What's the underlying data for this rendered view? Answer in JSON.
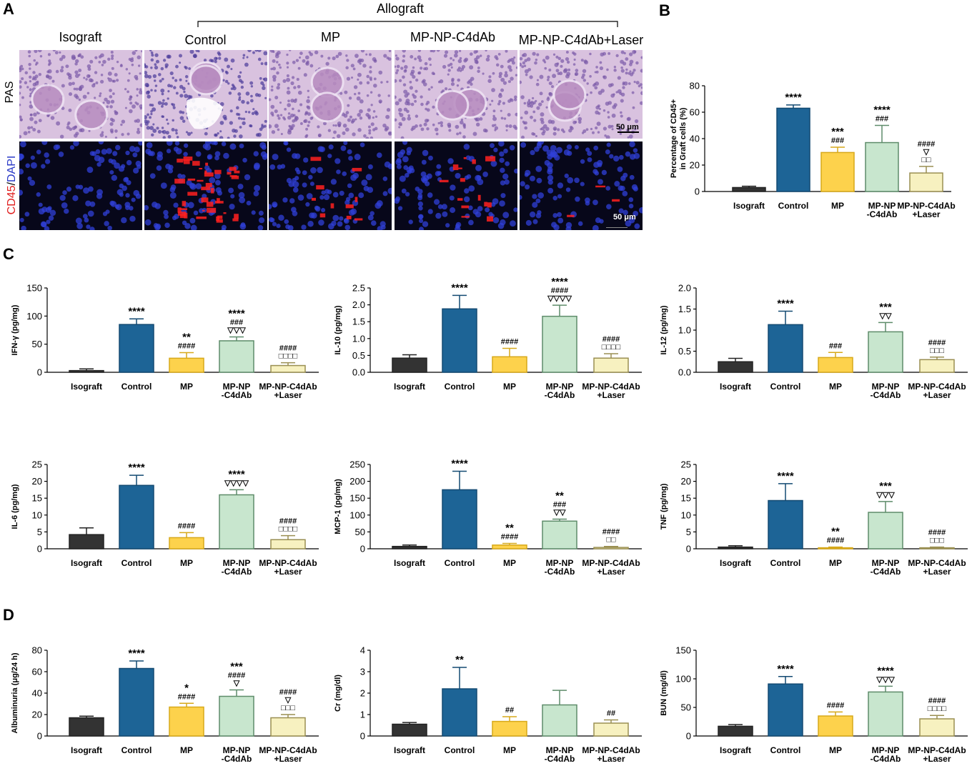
{
  "panel_letters": [
    "A",
    "B",
    "C",
    "D"
  ],
  "allograft_label": "Allograft",
  "micro_columns": [
    "Isograft",
    "Control",
    "MP",
    "MP-NP-C4dAb",
    "MP-NP-C4dAb+Laser"
  ],
  "micro_row_labels": {
    "pas": "PAS",
    "cd45": "CD45",
    "slash": "/",
    "dapi": "DAPI"
  },
  "scale_bars": [
    "50 μm",
    "50 μm"
  ],
  "colors": {
    "Isograft": "#333333",
    "Control": "#1d6496",
    "MP": "#fdd24c",
    "MP-NP-C4dAb": "#c8e6ce",
    "MP-NP-C4dAb+Laser": "#f7f1c0",
    "cd45_stain": "#ff2020",
    "dapi_stain": "#3040d8"
  },
  "chart_data": [
    {
      "id": "B",
      "type": "bar",
      "categories": [
        [
          "Isograft"
        ],
        [
          "Control"
        ],
        [
          "MP"
        ],
        [
          "MP-NP",
          "-C4dAb"
        ],
        [
          "MP-NP-C4dAb",
          "+Laser"
        ]
      ],
      "values": [
        3,
        63,
        29.5,
        37,
        14
      ],
      "errors": [
        1,
        2.5,
        4,
        13,
        5
      ],
      "ylabel": [
        "Percentage of CD45+",
        "in Graft cells (%)"
      ],
      "ylim": [
        0,
        80
      ],
      "yticks": [
        0,
        20,
        40,
        60,
        80
      ],
      "annotations": [
        [],
        [
          "****"
        ],
        [
          "***",
          "###"
        ],
        [
          "****",
          "###"
        ],
        [
          "####",
          "▽",
          "□□"
        ]
      ]
    },
    {
      "id": "IFN",
      "type": "bar",
      "categories": [
        [
          "Isograft"
        ],
        [
          "Control"
        ],
        [
          "MP"
        ],
        [
          "MP-NP",
          "-C4dAb"
        ],
        [
          "MP-NP-C4dAb",
          "+Laser"
        ]
      ],
      "values": [
        3,
        85,
        25,
        56,
        12
      ],
      "errors": [
        3,
        10,
        10,
        7,
        5
      ],
      "ylabel": [
        "IFN-γ (pg/mg)"
      ],
      "ylim": [
        0,
        150
      ],
      "yticks": [
        0,
        50,
        100,
        150
      ],
      "annotations": [
        [],
        [
          "****"
        ],
        [
          "**",
          "####"
        ],
        [
          "****",
          "###",
          "▽▽▽"
        ],
        [
          "####",
          "□□□□"
        ]
      ]
    },
    {
      "id": "IL10",
      "type": "bar",
      "categories": [
        [
          "Isograft"
        ],
        [
          "Control"
        ],
        [
          "MP"
        ],
        [
          "MP-NP",
          "-C4dAb"
        ],
        [
          "MP-NP-C4dAb",
          "+Laser"
        ]
      ],
      "values": [
        0.42,
        1.88,
        0.46,
        1.66,
        0.42
      ],
      "errors": [
        0.1,
        0.4,
        0.25,
        0.33,
        0.13
      ],
      "ylabel": [
        "IL-10 (pg/mg)"
      ],
      "ylim": [
        0,
        2.5
      ],
      "yticks": [
        0.0,
        0.5,
        1.0,
        1.5,
        2.0,
        2.5
      ],
      "ytick_labels": [
        "0.0",
        "0.5",
        "1.0",
        "1.5",
        "2.0",
        "2.5"
      ],
      "annotations": [
        [],
        [
          "****"
        ],
        [
          "####"
        ],
        [
          "****",
          "####",
          "▽▽▽▽"
        ],
        [
          "####",
          "□□□□"
        ]
      ]
    },
    {
      "id": "IL12",
      "type": "bar",
      "categories": [
        [
          "Isograft"
        ],
        [
          "Control"
        ],
        [
          "MP"
        ],
        [
          "MP-NP",
          "-C4dAb"
        ],
        [
          "MP-NP-C4dAb",
          "+Laser"
        ]
      ],
      "values": [
        0.25,
        1.13,
        0.35,
        0.96,
        0.3
      ],
      "errors": [
        0.08,
        0.32,
        0.12,
        0.22,
        0.06
      ],
      "ylabel": [
        "IL-12 (pg/mg)"
      ],
      "ylim": [
        0,
        2.0
      ],
      "yticks": [
        0.0,
        0.5,
        1.0,
        1.5,
        2.0
      ],
      "ytick_labels": [
        "0.0",
        "0.5",
        "1.0",
        "1.5",
        "2.0"
      ],
      "annotations": [
        [],
        [
          "****"
        ],
        [
          "###"
        ],
        [
          "***",
          "▽▽"
        ],
        [
          "####",
          "□□□"
        ]
      ]
    },
    {
      "id": "IL6",
      "type": "bar",
      "categories": [
        [
          "Isograft"
        ],
        [
          "Control"
        ],
        [
          "MP"
        ],
        [
          "MP-NP",
          "-C4dAb"
        ],
        [
          "MP-NP-C4dAb",
          "+Laser"
        ]
      ],
      "values": [
        4.2,
        18.8,
        3.3,
        16,
        2.7
      ],
      "errors": [
        2,
        3,
        1.5,
        1.5,
        1.2
      ],
      "ylabel": [
        "IL-6 (pg/mg)"
      ],
      "ylim": [
        0,
        25
      ],
      "yticks": [
        0,
        5,
        10,
        15,
        20,
        25
      ],
      "annotations": [
        [],
        [
          "****"
        ],
        [
          "####"
        ],
        [
          "****",
          "▽▽▽▽"
        ],
        [
          "####",
          "□□□□"
        ]
      ]
    },
    {
      "id": "MCP1",
      "type": "bar",
      "categories": [
        [
          "Isograft"
        ],
        [
          "Control"
        ],
        [
          "MP"
        ],
        [
          "MP-NP",
          "-C4dAb"
        ],
        [
          "MP-NP-C4dAb",
          "+Laser"
        ]
      ],
      "values": [
        7,
        175,
        11,
        82,
        4
      ],
      "errors": [
        4,
        55,
        5,
        6,
        3
      ],
      "ylabel": [
        "MCP-1 (pg/mg)"
      ],
      "ylim": [
        0,
        250
      ],
      "yticks": [
        0,
        50,
        100,
        150,
        200,
        250
      ],
      "annotations": [
        [],
        [
          "****"
        ],
        [
          "**",
          "####"
        ],
        [
          "**",
          "###",
          "▽▽"
        ],
        [
          "####",
          "□□"
        ]
      ]
    },
    {
      "id": "TNF",
      "type": "bar",
      "categories": [
        [
          "Isograft"
        ],
        [
          "Control"
        ],
        [
          "MP"
        ],
        [
          "MP-NP",
          "-C4dAb"
        ],
        [
          "MP-NP-C4dAb",
          "+Laser"
        ]
      ],
      "values": [
        0.5,
        14.3,
        0.3,
        10.8,
        0.3
      ],
      "errors": [
        0.4,
        5,
        0.2,
        3.2,
        0.2
      ],
      "ylabel": [
        "TNF (pg/mg)"
      ],
      "ylim": [
        0,
        25
      ],
      "yticks": [
        0,
        5,
        10,
        15,
        20,
        25
      ],
      "annotations": [
        [],
        [
          "****"
        ],
        [
          "**",
          "####"
        ],
        [
          "***",
          "▽▽▽"
        ],
        [
          "####",
          "□□□"
        ]
      ]
    },
    {
      "id": "ALB",
      "type": "bar",
      "categories": [
        [
          "Isograft"
        ],
        [
          "Control"
        ],
        [
          "MP"
        ],
        [
          "MP-NP",
          "-C4dAb"
        ],
        [
          "MP-NP-C4dAb",
          "+Laser"
        ]
      ],
      "values": [
        17,
        63,
        27,
        37,
        17
      ],
      "errors": [
        1.5,
        7,
        3.5,
        6,
        3
      ],
      "ylabel": [
        "Albuminuria (μg/24 h)"
      ],
      "ylim": [
        0,
        80
      ],
      "yticks": [
        0,
        20,
        40,
        60,
        80
      ],
      "annotations": [
        [],
        [
          "****"
        ],
        [
          "*",
          "####"
        ],
        [
          "***",
          "####",
          "▽"
        ],
        [
          "####",
          "▽",
          "□□□"
        ]
      ]
    },
    {
      "id": "CR",
      "type": "bar",
      "categories": [
        [
          "Isograft"
        ],
        [
          "Control"
        ],
        [
          "MP"
        ],
        [
          "MP-NP",
          "-C4dAb"
        ],
        [
          "MP-NP-C4dAb",
          "+Laser"
        ]
      ],
      "values": [
        0.55,
        2.2,
        0.68,
        1.45,
        0.6
      ],
      "errors": [
        0.08,
        1.0,
        0.22,
        0.68,
        0.15
      ],
      "ylabel": [
        "Cr (mg/dl)"
      ],
      "ylim": [
        0,
        4
      ],
      "yticks": [
        0,
        1,
        2,
        3,
        4
      ],
      "annotations": [
        [],
        [
          "**"
        ],
        [
          "##"
        ],
        [],
        [
          "##"
        ]
      ]
    },
    {
      "id": "BUN",
      "type": "bar",
      "categories": [
        [
          "Isograft"
        ],
        [
          "Control"
        ],
        [
          "MP"
        ],
        [
          "MP-NP",
          "-C4dAb"
        ],
        [
          "MP-NP-C4dAb",
          "+Laser"
        ]
      ],
      "values": [
        17,
        91,
        35,
        77,
        30
      ],
      "errors": [
        3,
        13,
        7,
        10,
        6
      ],
      "ylabel": [
        "BUN (mg/dl)"
      ],
      "ylim": [
        0,
        150
      ],
      "yticks": [
        0,
        50,
        100,
        150
      ],
      "annotations": [
        [],
        [
          "****"
        ],
        [
          "####"
        ],
        [
          "****",
          "▽▽▽"
        ],
        [
          "####",
          "□□□□"
        ]
      ]
    }
  ]
}
